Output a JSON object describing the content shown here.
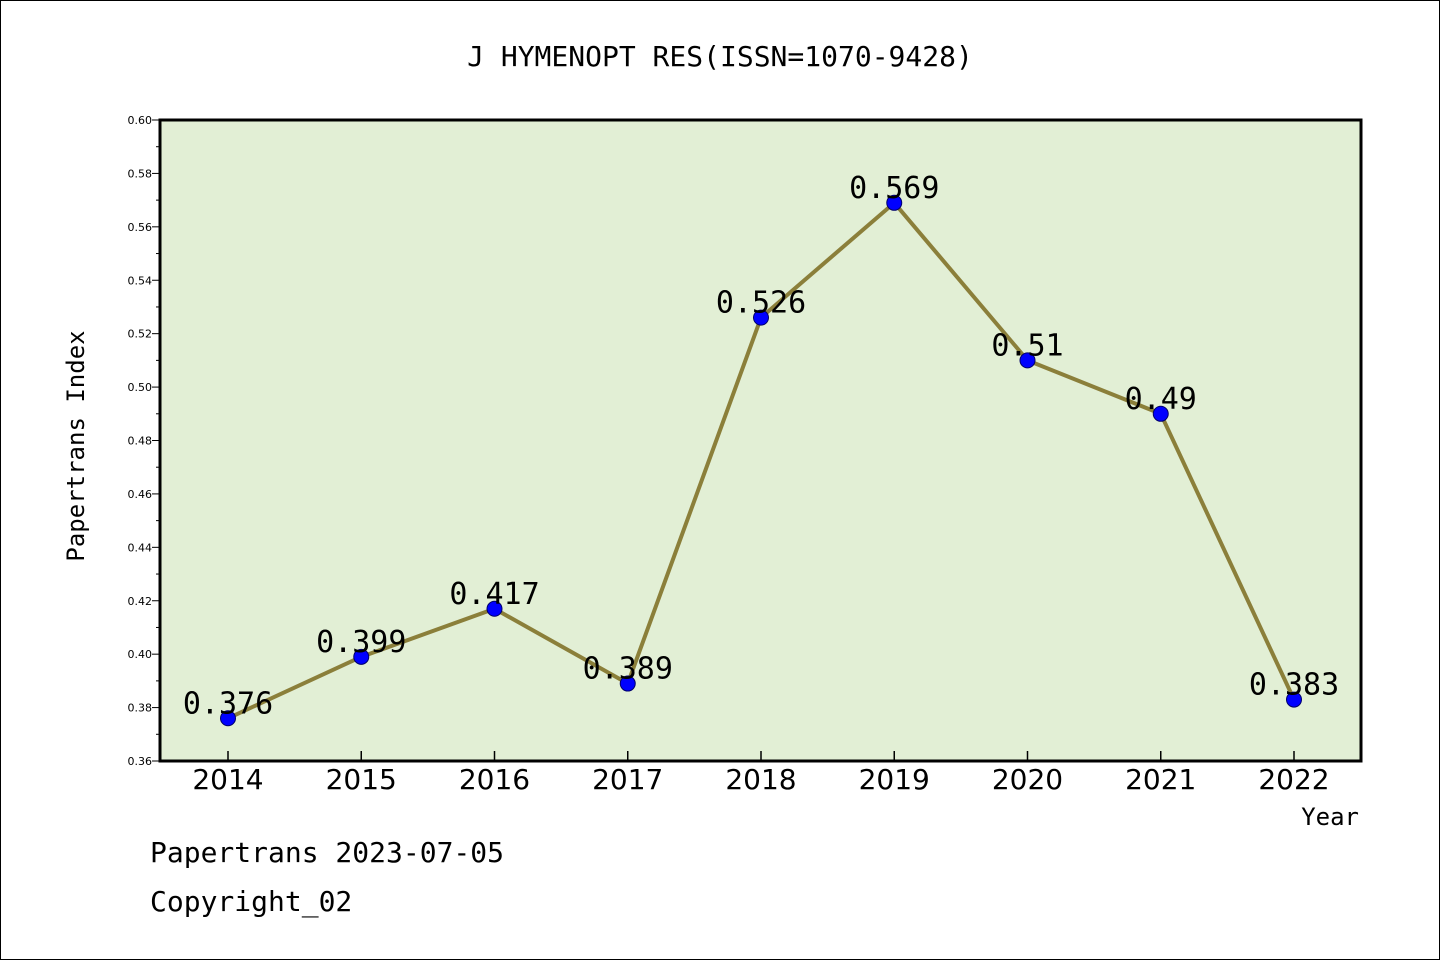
{
  "footer": {
    "source_line": "Papertrans 2023-07-05",
    "copyright_line": "Copyright_02"
  },
  "chart_data": {
    "type": "line",
    "title": "J HYMENOPT RES(ISSN=1070-9428)",
    "xlabel": "Year",
    "ylabel": "Papertrans Index",
    "categories": [
      "2014",
      "2015",
      "2016",
      "2017",
      "2018",
      "2019",
      "2020",
      "2021",
      "2022"
    ],
    "series": [
      {
        "values": [
          0.376,
          0.399,
          0.417,
          0.389,
          0.526,
          0.569,
          0.51,
          0.49,
          0.383
        ],
        "labels": [
          "0.376",
          "0.399",
          "0.417",
          "0.389",
          "0.526",
          "0.569",
          "0.51",
          "0.49",
          "0.383"
        ]
      }
    ],
    "ylim": [
      0.36,
      0.6
    ],
    "yticks": [
      "0.36",
      "0.38",
      "0.40",
      "0.42",
      "0.44",
      "0.46",
      "0.48",
      "0.50",
      "0.52",
      "0.54",
      "0.56",
      "0.58",
      "0.60"
    ],
    "grid": false,
    "colors": {
      "plot_background": "#e2efd5",
      "line": "#8b7f3a",
      "marker": "#0000ff"
    }
  }
}
